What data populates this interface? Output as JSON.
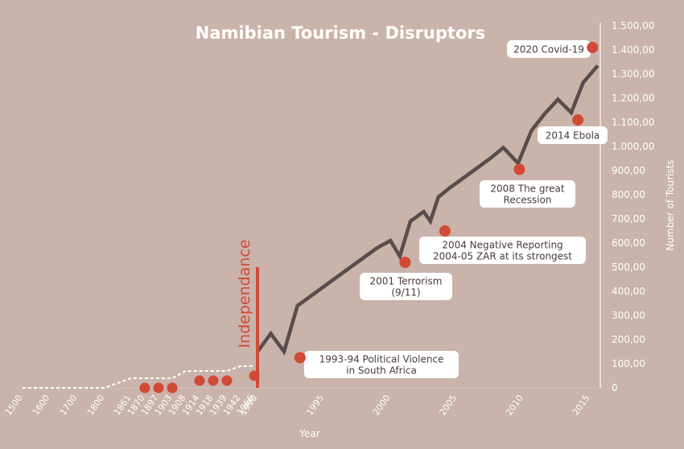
{
  "colors": {
    "background": "#c9b3aa",
    "line": "#5a4c4d",
    "marker": "#d14a36",
    "independence_bar": "#d14a36",
    "text": "#ffffff",
    "callout_bg": "#ffffff",
    "callout_text": "#4a3a3a"
  },
  "chart_data": {
    "type": "line",
    "title": "Namibian Tourism - Disruptors",
    "xlabel": "Year",
    "ylabel": "Number of Tourists",
    "ylim": [
      0,
      1500
    ],
    "y_ticks": [
      "0",
      "100,00",
      "200,00",
      "300,00",
      "400,00",
      "500,00",
      "600,00",
      "700,00",
      "800,00",
      "900,00",
      "1.000,00",
      "1.100,00",
      "1.200,00",
      "1.300,00",
      "1.400,00",
      "1.500,00"
    ],
    "y_tick_values": [
      0,
      100,
      200,
      300,
      400,
      500,
      600,
      700,
      800,
      900,
      1000,
      1100,
      1200,
      1300,
      1400,
      1500
    ],
    "x_ticks_historic": [
      "1500",
      "1600",
      "1700",
      "1800",
      "1861",
      "1870",
      "1897",
      "1903",
      "1908",
      "1914",
      "1918",
      "1939",
      "1942",
      "1966",
      "1990"
    ],
    "x_ticks_modern": [
      "1995",
      "2000",
      "2005",
      "2010",
      "2015"
    ],
    "x_ticks_modern_values": [
      1995,
      2000,
      2005,
      2010,
      2015
    ],
    "x_range_modern": [
      1990,
      2016
    ],
    "series": [
      {
        "style": "dashed",
        "points": [
          [
            1500,
            0
          ],
          [
            1600,
            0
          ],
          [
            1700,
            0
          ],
          [
            1800,
            0
          ],
          [
            1861,
            40
          ],
          [
            1870,
            40
          ],
          [
            1897,
            40
          ],
          [
            1903,
            40
          ],
          [
            1908,
            70
          ],
          [
            1914,
            70
          ],
          [
            1918,
            70
          ],
          [
            1939,
            70
          ],
          [
            1942,
            90
          ],
          [
            1966,
            90
          ]
        ]
      },
      {
        "style": "solid",
        "points": [
          [
            1990,
            150
          ],
          [
            1991,
            225
          ],
          [
            1992,
            150
          ],
          [
            1993,
            340
          ],
          [
            1994,
            380
          ],
          [
            1995,
            420
          ],
          [
            1996,
            460
          ],
          [
            1997,
            500
          ],
          [
            1998,
            540
          ],
          [
            1999,
            580
          ],
          [
            2000,
            610
          ],
          [
            2000.7,
            545
          ],
          [
            2001.5,
            690
          ],
          [
            2002.5,
            730
          ],
          [
            2003,
            690
          ],
          [
            2003.6,
            790
          ],
          [
            2004.5,
            830
          ],
          [
            2005.5,
            870
          ],
          [
            2006.5,
            910
          ],
          [
            2007.5,
            950
          ],
          [
            2008.5,
            995
          ],
          [
            2009.6,
            930
          ],
          [
            2010.6,
            1065
          ],
          [
            2011.6,
            1135
          ],
          [
            2012.6,
            1195
          ],
          [
            2013.6,
            1140
          ],
          [
            2014.5,
            1265
          ],
          [
            2015.6,
            1335
          ]
        ]
      }
    ],
    "historic_markers": [
      {
        "x": 1870,
        "y": 0
      },
      {
        "x": 1897,
        "y": 0
      },
      {
        "x": 1903,
        "y": 0
      },
      {
        "x": 1914,
        "y": 30
      },
      {
        "x": 1918,
        "y": 30
      },
      {
        "x": 1939,
        "y": 30
      },
      {
        "x": 1966,
        "y": 50
      }
    ],
    "events": [
      {
        "x": 1993.2,
        "y": 125,
        "label_lines": [
          "1993-94 Political Violence",
          "in South Africa"
        ]
      },
      {
        "x": 2001.1,
        "y": 520,
        "label_lines": [
          "2001 Terrorism",
          "(9/11)"
        ]
      },
      {
        "x": 2004.1,
        "y": 650,
        "label_lines": [
          "2004 Negative Reporting",
          "2004-05 ZAR at its strongest"
        ]
      },
      {
        "x": 2009.7,
        "y": 905,
        "label_lines": [
          "2008 The great",
          "Recession"
        ]
      },
      {
        "x": 2014.1,
        "y": 1110,
        "label_lines": [
          "2014 Ebola"
        ]
      },
      {
        "x": 2015.2,
        "y": 1410,
        "label_lines": [
          "2020 Covid-19"
        ]
      }
    ],
    "annotations": [
      {
        "text": "Independance",
        "x": 1990
      }
    ]
  }
}
